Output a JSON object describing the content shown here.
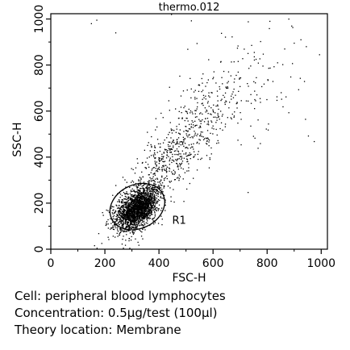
{
  "chart_data": {
    "type": "scatter",
    "title": "thermo.012",
    "xlabel": "FSC-H",
    "ylabel": "SSC-H",
    "xlim": [
      0,
      1023
    ],
    "ylim": [
      0,
      1023
    ],
    "xticks": [
      "0",
      "200",
      "400",
      "600",
      "800",
      "1000"
    ],
    "yticks": [
      "0",
      "200",
      "400",
      "600",
      "800",
      "1000"
    ],
    "grid": false,
    "point_color": "#000000",
    "gate": {
      "label": "R1",
      "shape": "ellipse",
      "center": [
        320,
        185
      ],
      "radius_x": 105,
      "radius_y": 95
    },
    "populations": [
      {
        "name_note": "dense lymphocyte cluster",
        "x_mean": 320,
        "x_sd": 38,
        "y_mean": 175,
        "y_sd": 42,
        "count": 2200
      },
      {
        "name_note": "diffuse spread",
        "x_mean": 470,
        "x_sd": 110,
        "y_mean": 430,
        "y_sd": 170,
        "count": 700
      },
      {
        "name_note": "high-scatter tail",
        "x_mean": 720,
        "x_sd": 130,
        "y_mean": 720,
        "y_sd": 140,
        "count": 120
      }
    ],
    "outliers": [
      [
        865,
        870
      ],
      [
        900,
        895
      ],
      [
        925,
        910
      ],
      [
        945,
        880
      ],
      [
        170,
        995
      ],
      [
        520,
        992
      ],
      [
        730,
        988
      ],
      [
        810,
        990
      ],
      [
        880,
        1000
      ],
      [
        240,
        940
      ],
      [
        150,
        980
      ]
    ]
  },
  "captions": {
    "cell": "Cell: peripheral blood lymphocytes",
    "concentration": "Concentration: 0.5μg/test (100μl)",
    "location": "Theory location: Membrane"
  }
}
